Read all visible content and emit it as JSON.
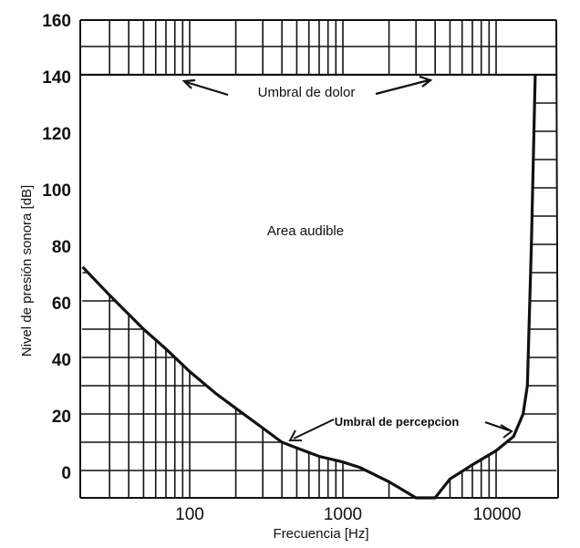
{
  "chart_data": {
    "type": "line",
    "title": "",
    "xlabel": "Frecuencia [Hz]",
    "ylabel": "Nivel de presión sonora [dB]",
    "xscale": "log",
    "xlim": [
      20,
      20000
    ],
    "ylim": [
      -10,
      160
    ],
    "x_ticks": [
      100,
      1000,
      10000
    ],
    "x_tick_labels": [
      "100",
      "1000",
      "10000"
    ],
    "y_ticks": [
      0,
      20,
      40,
      60,
      80,
      100,
      120,
      140,
      160
    ],
    "y_tick_labels": [
      "0",
      "20",
      "40",
      "60",
      "80",
      "100",
      "120",
      "140",
      "160"
    ],
    "grid": "hatched outside audible area (log-frequency grid, 10 dB steps)",
    "series": [
      {
        "name": "Umbral de percepción",
        "x": [
          20,
          30,
          50,
          70,
          100,
          150,
          200,
          300,
          400,
          500,
          700,
          1000,
          1300,
          2000,
          3000,
          4000,
          5000,
          7000,
          10000,
          13000,
          15000,
          16000,
          17000,
          18000
        ],
        "y": [
          72,
          62,
          50,
          43,
          35,
          27,
          22,
          15,
          10,
          8,
          5,
          3,
          1,
          -4,
          -10,
          -10,
          -3,
          2,
          7,
          12,
          20,
          30,
          80,
          140
        ]
      },
      {
        "name": "Umbral de dolor",
        "x": [
          20,
          20000
        ],
        "y": [
          140,
          140
        ]
      }
    ],
    "annotations": [
      {
        "text": "Umbral de dolor",
        "points_to": "line at 140 dB"
      },
      {
        "text": "Area audible",
        "position": "center, ~90 dB"
      },
      {
        "text": "Umbral de percepcion",
        "points_to": "threshold curve near 400 Hz and 12 kHz"
      }
    ]
  },
  "labels": {
    "xlabel": "Frecuencia [Hz]",
    "ylabel": "Nivel de presión sonora [dB]",
    "pain": "Umbral de dolor",
    "audible": "Area audible",
    "perception": "Umbral de percepcion"
  },
  "yticks": [
    "160",
    "140",
    "120",
    "100",
    "80",
    "60",
    "40",
    "20",
    "0"
  ],
  "xticks": [
    "100",
    "1000",
    "10000"
  ]
}
